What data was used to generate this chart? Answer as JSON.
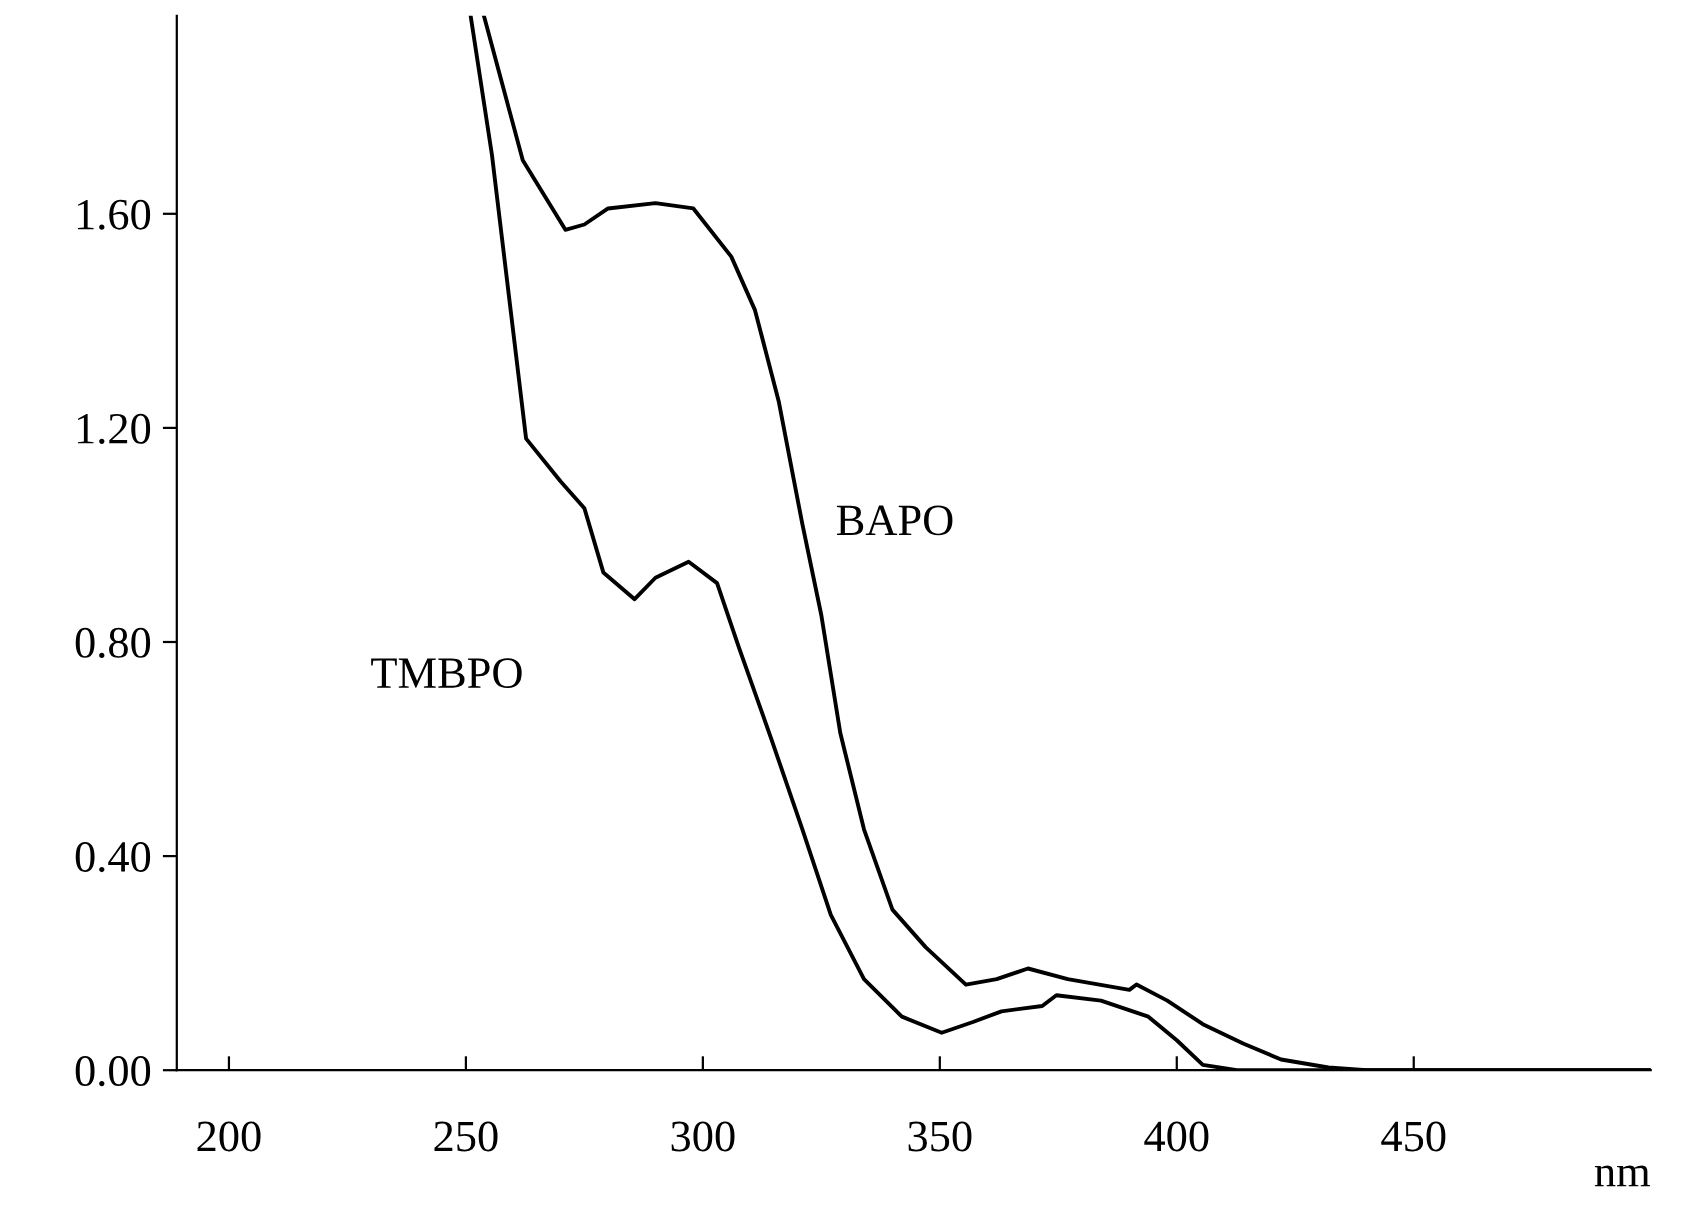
{
  "chart_data": {
    "type": "line",
    "xlabel": "nm",
    "xlim": [
      189,
      500
    ],
    "ylim": [
      0,
      1.97
    ],
    "xticks": [
      200,
      250,
      300,
      350,
      400,
      450
    ],
    "yticks": [
      {
        "value": 0,
        "label": "0.00"
      },
      {
        "value": 0.4,
        "label": "0.40"
      },
      {
        "value": 0.8,
        "label": "0.80"
      },
      {
        "value": 1.2,
        "label": "1.20"
      },
      {
        "value": 1.6,
        "label": "1.60"
      }
    ],
    "grid": false,
    "legend": false,
    "marker": "none",
    "line_style": "solid",
    "series": [
      {
        "name": "BAPO",
        "color": "#000000",
        "x": [
          253.8,
          262,
          271,
          275,
          280,
          290,
          298,
          306,
          311,
          316,
          321,
          325,
          329,
          334,
          340,
          347,
          355.5,
          362,
          368.6,
          377,
          390,
          391.5,
          398,
          405.5,
          414,
          422,
          432,
          440,
          450,
          500
        ],
        "values": [
          1.97,
          1.7,
          1.57,
          1.58,
          1.61,
          1.62,
          1.61,
          1.52,
          1.42,
          1.25,
          1.02,
          0.85,
          0.63,
          0.45,
          0.3,
          0.23,
          0.16,
          0.17,
          0.19,
          0.17,
          0.15,
          0.16,
          0.13,
          0.086,
          0.05,
          0.02,
          0.005,
          0,
          0,
          0
        ]
      },
      {
        "name": "TMBPO",
        "color": "#000000",
        "x": [
          251,
          255.5,
          262.7,
          270,
          275,
          279,
          285.6,
          290,
          297,
          303,
          307.6,
          314.4,
          321,
          327,
          334,
          342,
          350.4,
          357,
          363,
          371.6,
          374.6,
          384,
          394,
          400,
          405.5,
          412.7,
          420,
          500
        ],
        "values": [
          1.97,
          1.71,
          1.18,
          1.1,
          1.05,
          0.93,
          0.88,
          0.92,
          0.95,
          0.91,
          0.79,
          0.62,
          0.45,
          0.29,
          0.17,
          0.1,
          0.07,
          0.09,
          0.11,
          0.12,
          0.14,
          0.13,
          0.1,
          0.056,
          0.01,
          0,
          0,
          0
        ]
      }
    ]
  }
}
